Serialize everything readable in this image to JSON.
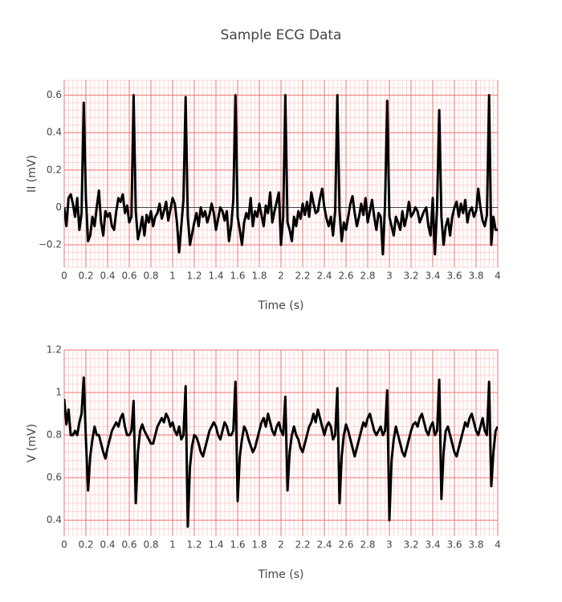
{
  "chart_data": [
    {
      "type": "line",
      "title": "Sample ECG Data",
      "xlabel": "Time (s)",
      "ylabel": "II (mV)",
      "x": [
        0,
        0.02,
        0.04,
        0.06,
        0.08,
        0.1,
        0.12,
        0.14,
        0.16,
        0.18,
        0.2,
        0.22,
        0.24,
        0.26,
        0.28,
        0.3,
        0.32,
        0.34,
        0.36,
        0.38,
        0.4,
        0.42,
        0.44,
        0.46,
        0.48,
        0.5,
        0.52,
        0.54,
        0.56,
        0.58,
        0.6,
        0.62,
        0.64,
        0.66,
        0.68,
        0.7,
        0.72,
        0.74,
        0.76,
        0.78,
        0.8,
        0.82,
        0.84,
        0.86,
        0.88,
        0.9,
        0.92,
        0.94,
        0.96,
        0.98,
        1,
        1.02,
        1.04,
        1.06,
        1.08,
        1.1,
        1.12,
        1.14,
        1.16,
        1.18,
        1.2,
        1.22,
        1.24,
        1.26,
        1.28,
        1.3,
        1.32,
        1.34,
        1.36,
        1.38,
        1.4,
        1.42,
        1.44,
        1.46,
        1.48,
        1.5,
        1.52,
        1.54,
        1.56,
        1.58,
        1.6,
        1.62,
        1.64,
        1.66,
        1.68,
        1.7,
        1.72,
        1.74,
        1.76,
        1.78,
        1.8,
        1.82,
        1.84,
        1.86,
        1.88,
        1.9,
        1.92,
        1.94,
        1.96,
        1.98,
        2,
        2.02,
        2.04,
        2.06,
        2.08,
        2.1,
        2.12,
        2.14,
        2.16,
        2.18,
        2.2,
        2.22,
        2.24,
        2.26,
        2.28,
        2.3,
        2.32,
        2.34,
        2.36,
        2.38,
        2.4,
        2.42,
        2.44,
        2.46,
        2.48,
        2.5,
        2.52,
        2.54,
        2.56,
        2.58,
        2.6,
        2.62,
        2.64,
        2.66,
        2.68,
        2.7,
        2.72,
        2.74,
        2.76,
        2.78,
        2.8,
        2.82,
        2.84,
        2.86,
        2.88,
        2.9,
        2.92,
        2.94,
        2.96,
        2.98,
        3,
        3.02,
        3.04,
        3.06,
        3.08,
        3.1,
        3.12,
        3.14,
        3.16,
        3.18,
        3.2,
        3.22,
        3.24,
        3.26,
        3.28,
        3.3,
        3.32,
        3.34,
        3.36,
        3.38,
        3.4,
        3.42,
        3.44,
        3.46,
        3.48,
        3.5,
        3.52,
        3.54,
        3.56,
        3.58,
        3.6,
        3.62,
        3.64,
        3.66,
        3.68,
        3.7,
        3.72,
        3.74,
        3.76,
        3.78,
        3.8,
        3.82,
        3.84,
        3.86,
        3.88,
        3.9,
        3.92,
        3.94,
        3.96,
        3.98,
        4
      ],
      "series": [
        {
          "color": "#000000",
          "values": [
            0.0,
            -0.1,
            0.05,
            0.07,
            0.02,
            -0.05,
            0.05,
            -0.12,
            -0.03,
            0.56,
            0.05,
            -0.18,
            -0.15,
            -0.05,
            -0.1,
            0.0,
            0.09,
            -0.08,
            -0.15,
            -0.02,
            -0.05,
            -0.03,
            -0.1,
            -0.12,
            -0.02,
            0.05,
            0.03,
            0.07,
            -0.03,
            0.01,
            -0.08,
            -0.05,
            0.6,
            -0.02,
            -0.17,
            -0.12,
            -0.05,
            -0.15,
            -0.04,
            -0.08,
            -0.02,
            -0.1,
            -0.05,
            -0.03,
            0.02,
            -0.06,
            -0.02,
            0.03,
            -0.07,
            -0.01,
            0.05,
            0.02,
            -0.08,
            -0.24,
            -0.1,
            0.04,
            0.59,
            -0.05,
            -0.2,
            -0.14,
            -0.08,
            -0.03,
            -0.1,
            0.0,
            -0.05,
            -0.02,
            -0.08,
            -0.04,
            0.02,
            -0.03,
            -0.12,
            -0.06,
            0.0,
            -0.02,
            -0.07,
            -0.02,
            -0.18,
            -0.1,
            0.04,
            0.6,
            -0.05,
            -0.12,
            -0.2,
            -0.08,
            -0.03,
            -0.06,
            0.05,
            -0.1,
            -0.02,
            -0.05,
            0.02,
            -0.04,
            -0.1,
            0.01,
            -0.03,
            0.08,
            -0.08,
            -0.02,
            0.03,
            0.08,
            -0.2,
            -0.05,
            0.6,
            -0.08,
            -0.12,
            -0.18,
            -0.05,
            -0.1,
            -0.02,
            -0.06,
            0.02,
            -0.04,
            0.03,
            -0.05,
            0.08,
            0.02,
            -0.03,
            -0.02,
            0.05,
            0.1,
            0.0,
            -0.06,
            -0.1,
            -0.05,
            -0.15,
            -0.02,
            0.6,
            -0.02,
            -0.18,
            -0.08,
            -0.12,
            -0.05,
            0.02,
            0.06,
            -0.03,
            -0.1,
            -0.05,
            0.02,
            -0.04,
            0.05,
            -0.08,
            -0.02,
            0.04,
            -0.05,
            -0.12,
            -0.03,
            -0.05,
            -0.25,
            0.02,
            0.57,
            -0.05,
            -0.1,
            -0.15,
            -0.05,
            -0.08,
            -0.12,
            -0.02,
            -0.1,
            -0.05,
            0.03,
            -0.05,
            -0.03,
            0.0,
            -0.02,
            -0.08,
            -0.05,
            -0.02,
            0.0,
            -0.1,
            -0.15,
            0.05,
            -0.25,
            0.0,
            0.52,
            -0.05,
            -0.2,
            -0.1,
            -0.06,
            -0.15,
            -0.05,
            0.0,
            0.03,
            -0.05,
            0.02,
            -0.03,
            0.04,
            -0.08,
            -0.02,
            0.0,
            -0.05,
            -0.02,
            0.1,
            0.0,
            -0.07,
            -0.1,
            -0.04,
            0.6,
            -0.2,
            -0.05,
            -0.12,
            -0.12
          ]
        }
      ],
      "xlim": [
        0,
        4
      ],
      "xticks": [
        0,
        0.2,
        0.4,
        0.6,
        0.8,
        1,
        1.2,
        1.4,
        1.6,
        1.8,
        2,
        2.2,
        2.4,
        2.6,
        2.8,
        3,
        3.2,
        3.4,
        3.6,
        3.8,
        4
      ],
      "ylim": [
        -0.32,
        0.68
      ],
      "yticks": [
        {
          "value": -0.2,
          "label": "−0.2"
        },
        0,
        0.2,
        0.4,
        0.6
      ],
      "grid": true,
      "minor_grid": true,
      "zeroline": true
    },
    {
      "type": "line",
      "xlabel": "Time (s)",
      "ylabel": "V (mV)",
      "x": [
        0,
        0.02,
        0.04,
        0.06,
        0.08,
        0.1,
        0.12,
        0.14,
        0.16,
        0.18,
        0.2,
        0.22,
        0.24,
        0.26,
        0.28,
        0.3,
        0.32,
        0.34,
        0.36,
        0.38,
        0.4,
        0.42,
        0.44,
        0.46,
        0.48,
        0.5,
        0.52,
        0.54,
        0.56,
        0.58,
        0.6,
        0.62,
        0.64,
        0.66,
        0.68,
        0.7,
        0.72,
        0.74,
        0.76,
        0.78,
        0.8,
        0.82,
        0.84,
        0.86,
        0.88,
        0.9,
        0.92,
        0.94,
        0.96,
        0.98,
        1,
        1.02,
        1.04,
        1.06,
        1.08,
        1.1,
        1.12,
        1.14,
        1.16,
        1.18,
        1.2,
        1.22,
        1.24,
        1.26,
        1.28,
        1.3,
        1.32,
        1.34,
        1.36,
        1.38,
        1.4,
        1.42,
        1.44,
        1.46,
        1.48,
        1.5,
        1.52,
        1.54,
        1.56,
        1.58,
        1.6,
        1.62,
        1.64,
        1.66,
        1.68,
        1.7,
        1.72,
        1.74,
        1.76,
        1.78,
        1.8,
        1.82,
        1.84,
        1.86,
        1.88,
        1.9,
        1.92,
        1.94,
        1.96,
        1.98,
        2,
        2.02,
        2.04,
        2.06,
        2.08,
        2.1,
        2.12,
        2.14,
        2.16,
        2.18,
        2.2,
        2.22,
        2.24,
        2.26,
        2.28,
        2.3,
        2.32,
        2.34,
        2.36,
        2.38,
        2.4,
        2.42,
        2.44,
        2.46,
        2.48,
        2.5,
        2.52,
        2.54,
        2.56,
        2.58,
        2.6,
        2.62,
        2.64,
        2.66,
        2.68,
        2.7,
        2.72,
        2.74,
        2.76,
        2.78,
        2.8,
        2.82,
        2.84,
        2.86,
        2.88,
        2.9,
        2.92,
        2.94,
        2.96,
        2.98,
        3,
        3.02,
        3.04,
        3.06,
        3.08,
        3.1,
        3.12,
        3.14,
        3.16,
        3.18,
        3.2,
        3.22,
        3.24,
        3.26,
        3.28,
        3.3,
        3.32,
        3.34,
        3.36,
        3.38,
        3.4,
        3.42,
        3.44,
        3.46,
        3.48,
        3.5,
        3.52,
        3.54,
        3.56,
        3.58,
        3.6,
        3.62,
        3.64,
        3.66,
        3.68,
        3.7,
        3.72,
        3.74,
        3.76,
        3.78,
        3.8,
        3.82,
        3.84,
        3.86,
        3.88,
        3.9,
        3.92,
        3.94,
        3.96,
        3.98,
        4
      ],
      "series": [
        {
          "color": "#000000",
          "values": [
            0.97,
            0.85,
            0.92,
            0.8,
            0.8,
            0.82,
            0.8,
            0.86,
            0.9,
            1.07,
            0.78,
            0.54,
            0.7,
            0.78,
            0.84,
            0.8,
            0.8,
            0.76,
            0.72,
            0.69,
            0.74,
            0.78,
            0.82,
            0.84,
            0.86,
            0.84,
            0.88,
            0.9,
            0.84,
            0.8,
            0.8,
            0.82,
            0.96,
            0.48,
            0.72,
            0.82,
            0.85,
            0.82,
            0.8,
            0.78,
            0.76,
            0.76,
            0.8,
            0.84,
            0.86,
            0.88,
            0.86,
            0.9,
            0.88,
            0.84,
            0.86,
            0.82,
            0.8,
            0.84,
            0.78,
            0.8,
            1.03,
            0.37,
            0.65,
            0.75,
            0.8,
            0.79,
            0.76,
            0.72,
            0.7,
            0.74,
            0.78,
            0.82,
            0.84,
            0.86,
            0.84,
            0.8,
            0.78,
            0.82,
            0.86,
            0.84,
            0.8,
            0.8,
            0.82,
            1.05,
            0.49,
            0.7,
            0.78,
            0.84,
            0.82,
            0.78,
            0.75,
            0.72,
            0.74,
            0.78,
            0.82,
            0.86,
            0.88,
            0.84,
            0.9,
            0.86,
            0.82,
            0.8,
            0.84,
            0.86,
            0.82,
            0.8,
            0.98,
            0.54,
            0.72,
            0.8,
            0.84,
            0.8,
            0.78,
            0.74,
            0.72,
            0.76,
            0.8,
            0.84,
            0.86,
            0.9,
            0.86,
            0.92,
            0.88,
            0.84,
            0.8,
            0.84,
            0.86,
            0.84,
            0.78,
            0.8,
            1.02,
            0.48,
            0.7,
            0.8,
            0.85,
            0.82,
            0.78,
            0.74,
            0.7,
            0.74,
            0.78,
            0.82,
            0.86,
            0.84,
            0.88,
            0.9,
            0.86,
            0.82,
            0.8,
            0.82,
            0.84,
            0.8,
            0.82,
            1.01,
            0.4,
            0.68,
            0.78,
            0.84,
            0.8,
            0.76,
            0.72,
            0.7,
            0.74,
            0.78,
            0.82,
            0.85,
            0.86,
            0.84,
            0.88,
            0.9,
            0.86,
            0.82,
            0.8,
            0.84,
            0.86,
            0.8,
            0.82,
            1.06,
            0.5,
            0.72,
            0.82,
            0.84,
            0.8,
            0.76,
            0.72,
            0.7,
            0.74,
            0.78,
            0.82,
            0.86,
            0.84,
            0.88,
            0.9,
            0.86,
            0.82,
            0.8,
            0.84,
            0.88,
            0.82,
            0.8,
            1.05,
            0.56,
            0.72,
            0.82,
            0.84
          ]
        }
      ],
      "xlim": [
        0,
        4
      ],
      "xticks": [
        0,
        0.2,
        0.4,
        0.6,
        0.8,
        1,
        1.2,
        1.4,
        1.6,
        1.8,
        2,
        2.2,
        2.4,
        2.6,
        2.8,
        3,
        3.2,
        3.4,
        3.6,
        3.8,
        4
      ],
      "ylim": [
        0.325,
        1.2
      ],
      "yticks": [
        0.4,
        0.6,
        0.8,
        1,
        1.2
      ],
      "grid": true,
      "minor_grid": true,
      "zeroline": true
    }
  ]
}
